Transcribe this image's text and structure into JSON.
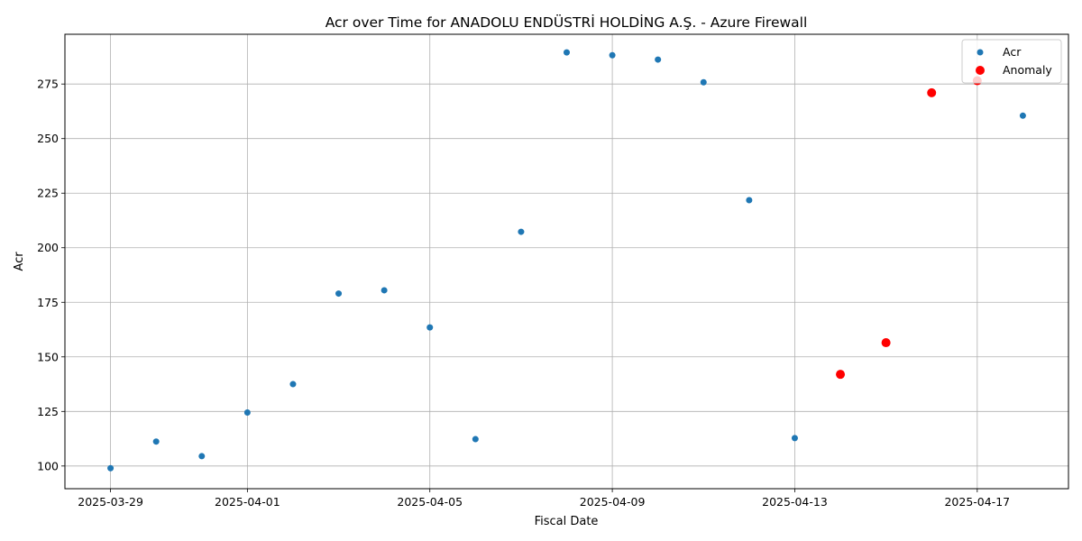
{
  "chart_data": {
    "type": "scatter",
    "title": "Acr over Time for ANADOLU ENDÜSTRİ HOLDİNG A.Ş. - Azure Firewall",
    "xlabel": "Fiscal Date",
    "ylabel": "Acr",
    "xlim": [
      "2025-03-28",
      "2025-04-19"
    ],
    "ylim": [
      89.6,
      297.8
    ],
    "x_ticks": [
      "2025-03-29",
      "2025-04-01",
      "2025-04-05",
      "2025-04-09",
      "2025-04-13",
      "2025-04-17"
    ],
    "y_ticks": [
      100,
      125,
      150,
      175,
      200,
      225,
      250,
      275
    ],
    "grid": true,
    "legend_position": "top-right",
    "series": [
      {
        "name": "Acr",
        "color": "#1f77b4",
        "x": [
          "2025-03-29",
          "2025-03-30",
          "2025-03-31",
          "2025-04-01",
          "2025-04-02",
          "2025-04-03",
          "2025-04-04",
          "2025-04-05",
          "2025-04-06",
          "2025-04-07",
          "2025-04-08",
          "2025-04-09",
          "2025-04-10",
          "2025-04-11",
          "2025-04-12",
          "2025-04-13",
          "2025-04-14",
          "2025-04-15",
          "2025-04-16",
          "2025-04-17",
          "2025-04-18"
        ],
        "y": [
          99.0,
          111.2,
          104.5,
          124.5,
          137.5,
          179.0,
          180.5,
          163.5,
          112.3,
          207.3,
          289.5,
          288.2,
          286.2,
          275.8,
          221.8,
          112.8,
          142.0,
          156.5,
          271.0,
          276.5,
          260.5
        ]
      },
      {
        "name": "Anomaly",
        "color": "#ff0000",
        "x": [
          "2025-04-14",
          "2025-04-15",
          "2025-04-16",
          "2025-04-17"
        ],
        "y": [
          142.0,
          156.5,
          271.0,
          276.5
        ]
      }
    ]
  }
}
